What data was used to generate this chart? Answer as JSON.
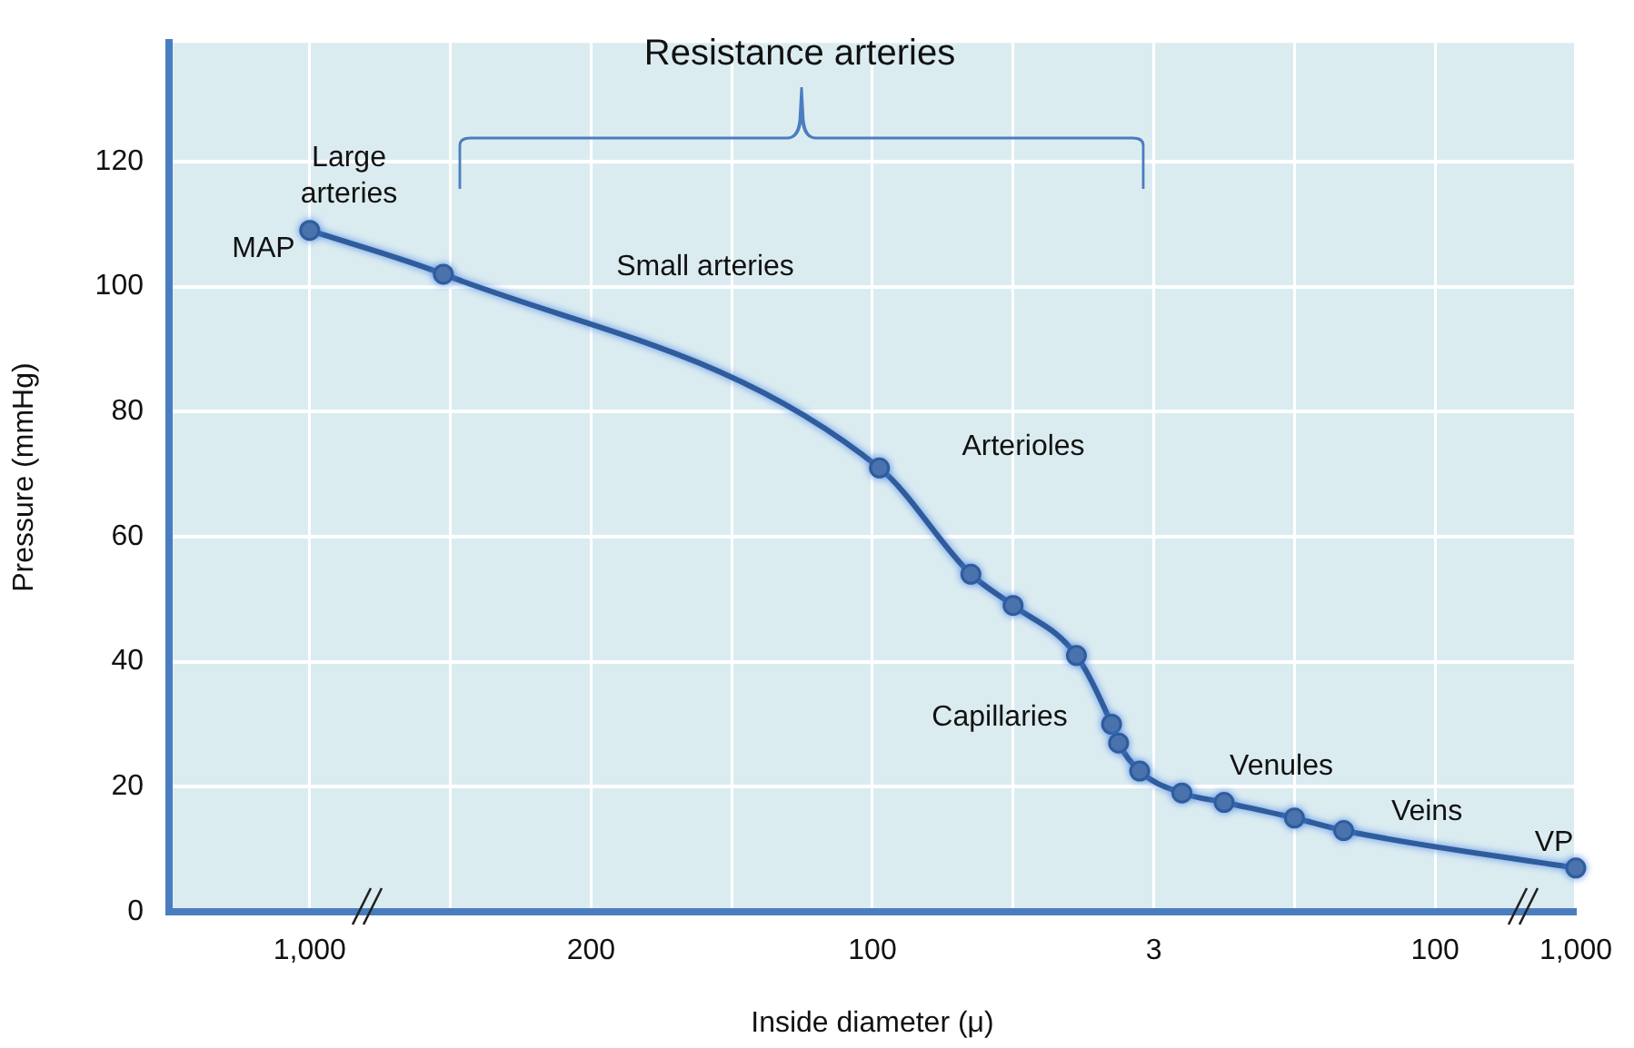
{
  "chart_data": {
    "type": "line",
    "xlabel": "Inside diameter (μ)",
    "ylabel": "Pressure (mmHg)",
    "categories": [
      null,
      null,
      null,
      null,
      null,
      null,
      null,
      null,
      null,
      null,
      null,
      null,
      null,
      null,
      null,
      null,
      null,
      null,
      null,
      null,
      "1,000",
      null,
      null,
      null,
      null,
      null,
      null,
      null,
      null,
      null,
      null,
      null,
      null,
      null,
      null,
      null,
      null,
      null,
      null,
      null,
      null,
      null,
      null,
      null,
      null,
      null,
      null,
      null,
      null,
      null,
      null,
      null,
      null,
      null,
      null,
      null,
      null,
      null,
      null,
      null,
      "200",
      null,
      null,
      null,
      null,
      null,
      null,
      null,
      null,
      null,
      null,
      null,
      null,
      null,
      null,
      null,
      null,
      null,
      null,
      null,
      null,
      null,
      null,
      null,
      null,
      null,
      null,
      null,
      null,
      null,
      null,
      null,
      null,
      null,
      null,
      null,
      null,
      null,
      null,
      null,
      "100",
      null,
      null,
      null,
      null,
      null,
      null,
      null,
      null,
      null,
      null,
      null,
      null,
      null,
      null,
      null,
      null,
      null,
      null,
      null,
      null,
      null,
      null,
      null,
      null,
      null,
      null,
      null,
      null,
      null,
      null,
      null,
      null,
      null,
      null,
      null,
      null,
      null,
      null,
      null,
      "3",
      null,
      null,
      null,
      null,
      null,
      null,
      null,
      null,
      null,
      null,
      null,
      null,
      null,
      null,
      null,
      null,
      null,
      null,
      null,
      null,
      null,
      null,
      null,
      null,
      null,
      null,
      null,
      null,
      null,
      null,
      null,
      null,
      null,
      null,
      null,
      null,
      null,
      null,
      null,
      "100",
      null,
      null,
      null,
      null,
      null,
      null,
      null,
      null,
      null,
      null,
      null,
      null,
      null,
      null,
      null,
      null,
      null,
      null,
      null,
      "1,000"
    ],
    "series": [
      {
        "color": "#2f5c9c",
        "values": [
          null,
          null,
          null,
          null,
          null,
          null,
          null,
          null,
          null,
          null,
          null,
          null,
          null,
          null,
          null,
          null,
          null,
          null,
          null,
          null,
          109,
          null,
          null,
          null,
          null,
          null,
          null,
          null,
          null,
          null,
          null,
          null,
          null,
          null,
          null,
          null,
          null,
          null,
          null,
          102,
          null,
          null,
          null,
          null,
          null,
          null,
          null,
          null,
          null,
          null,
          null,
          null,
          null,
          null,
          null,
          null,
          null,
          null,
          null,
          null,
          null,
          null,
          null,
          null,
          null,
          null,
          null,
          null,
          null,
          null,
          null,
          null,
          null,
          null,
          null,
          null,
          null,
          null,
          null,
          null,
          null,
          null,
          null,
          null,
          null,
          null,
          null,
          null,
          null,
          null,
          null,
          null,
          null,
          null,
          null,
          null,
          null,
          null,
          null,
          null,
          null,
          71,
          null,
          null,
          null,
          null,
          null,
          null,
          null,
          null,
          null,
          null,
          null,
          null,
          54,
          null,
          null,
          null,
          null,
          null,
          49,
          null,
          null,
          null,
          null,
          null,
          null,
          null,
          null,
          41,
          null,
          null,
          null,
          null,
          30,
          27,
          null,
          null,
          22.5,
          null,
          null,
          null,
          null,
          null,
          19,
          null,
          null,
          null,
          null,
          null,
          17.5,
          null,
          null,
          null,
          null,
          null,
          null,
          null,
          null,
          null,
          15,
          null,
          null,
          null,
          null,
          null,
          null,
          13,
          null,
          null,
          null,
          null,
          null,
          null,
          null,
          null,
          null,
          null,
          null,
          null,
          null,
          null,
          null,
          null,
          null,
          null,
          null,
          null,
          null,
          null,
          null,
          null,
          null,
          null,
          null,
          null,
          null,
          null,
          null,
          null,
          7
        ]
      }
    ],
    "ylim": [
      0,
      139
    ],
    "yticks": [
      0,
      20,
      40,
      60,
      80,
      100,
      120
    ],
    "grid": true,
    "marker": "circle",
    "line_style": "solid",
    "annotations": [
      "Resistance arteries",
      "Large\narteries",
      "MAP",
      "Small arteries",
      "Arterioles",
      "Capillaries",
      "Venules",
      "Veins",
      "VP"
    ]
  }
}
